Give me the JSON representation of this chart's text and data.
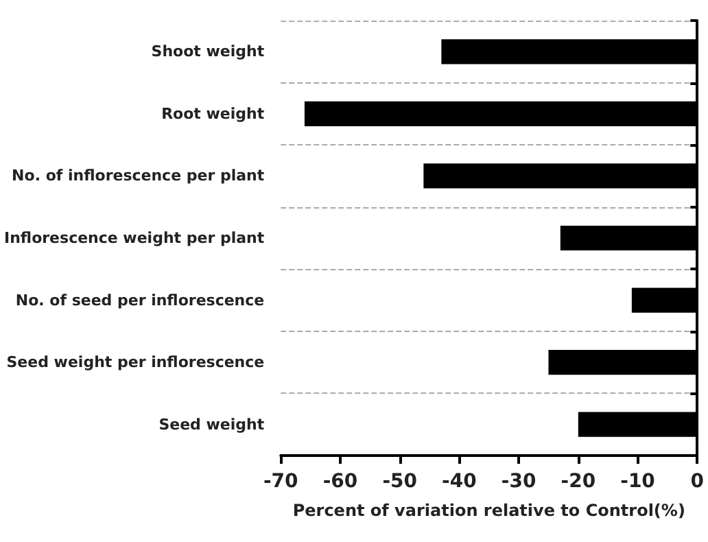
{
  "chart_data": {
    "type": "bar",
    "orientation": "horizontal",
    "xlabel": "Percent of variation relative to Control(%)",
    "categories": [
      "Shoot weight",
      "Root weight",
      "No. of inflorescence per plant",
      "Inflorescence weight per plant",
      "No. of seed per inflorescence",
      "Seed weight per inflorescence",
      "Seed weight"
    ],
    "values": [
      -43,
      -66,
      -46,
      -23,
      -11,
      -25,
      -20
    ],
    "color": "#000000",
    "xlim": [
      -70,
      0
    ],
    "xticks": [
      -70,
      -60,
      -50,
      -40,
      -30,
      -20,
      -10,
      0
    ],
    "grid": "y"
  }
}
